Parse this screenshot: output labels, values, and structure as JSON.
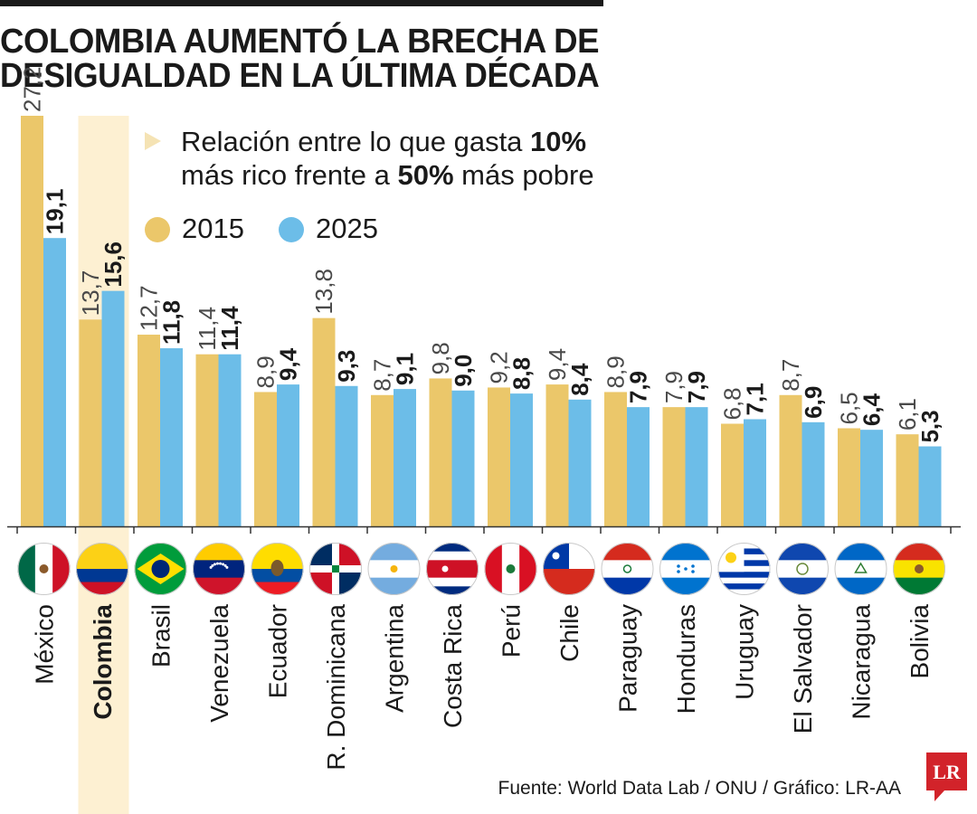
{
  "title": {
    "line1": "COLOMBIA AUMENTÓ LA BRECHA DE",
    "line2": "DESIGUALDAD EN LA ÚLTIMA DÉCADA"
  },
  "subtitle": {
    "part1": "Relación entre lo que gasta ",
    "bold1": "10%",
    "part2": "más rico frente a ",
    "bold2": "50%",
    "part3": " más pobre"
  },
  "legend": {
    "item1": {
      "label": "2015",
      "color": "#ebc76a"
    },
    "item2": {
      "label": "2025",
      "color": "#6cbde8"
    }
  },
  "source": "Fuente: World Data Lab / ONU / Gráfico: LR-AA",
  "logo_text": "LR",
  "colors": {
    "bar2015": "#ebc76a",
    "bar2025": "#6cbde8",
    "highlight": "#fdf0d2",
    "logo": "#d2232a"
  },
  "chart_data": {
    "type": "bar",
    "categories": [
      "México",
      "Colombia",
      "Brasil",
      "Venezuela",
      "Ecuador",
      "R. Dominicana",
      "Argentina",
      "Costa Rica",
      "Perú",
      "Chile",
      "Paraguay",
      "Honduras",
      "Uruguay",
      "El Salvador",
      "Nicaragua",
      "Bolivia"
    ],
    "series": [
      {
        "name": "2015",
        "values": [
          27.2,
          13.7,
          12.7,
          11.4,
          8.9,
          13.8,
          8.7,
          9.8,
          9.2,
          9.4,
          8.9,
          7.9,
          6.8,
          8.7,
          6.5,
          6.1
        ],
        "labels": [
          "27,2",
          "13,7",
          "12,7",
          "11,4",
          "8,9",
          "13,8",
          "8,7",
          "9,8",
          "9,2",
          "9,4",
          "8,9",
          "7,9",
          "6,8",
          "8,7",
          "6,5",
          "6,1"
        ]
      },
      {
        "name": "2025",
        "values": [
          19.1,
          15.6,
          11.8,
          11.4,
          9.4,
          9.3,
          9.1,
          9.0,
          8.8,
          8.4,
          7.9,
          7.9,
          7.1,
          6.9,
          6.4,
          5.3
        ],
        "labels": [
          "19,1",
          "15,6",
          "11,8",
          "11,4",
          "9,4",
          "9,3",
          "9,1",
          "9,0",
          "8,8",
          "8,4",
          "7,9",
          "7,9",
          "7,1",
          "6,9",
          "6,4",
          "5,3"
        ]
      }
    ],
    "highlight_category": "Colombia",
    "flags": [
      "mexico-flag",
      "colombia-flag",
      "brazil-flag",
      "venezuela-flag",
      "ecuador-flag",
      "dominican-republic-flag",
      "argentina-flag",
      "costa-rica-flag",
      "peru-flag",
      "chile-flag",
      "paraguay-flag",
      "honduras-flag",
      "uruguay-flag",
      "el-salvador-flag",
      "nicaragua-flag",
      "bolivia-flag"
    ],
    "xlabel": "",
    "ylabel": "",
    "ylim": [
      0,
      27.2
    ],
    "grid": false,
    "legend_position": "top"
  }
}
